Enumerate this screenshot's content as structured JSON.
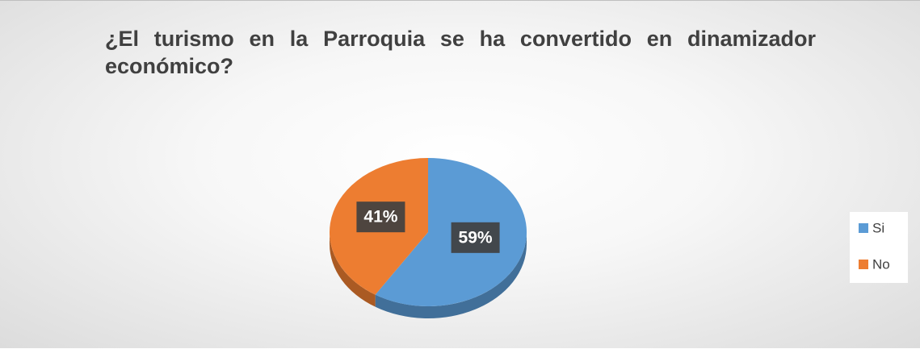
{
  "chart_data": {
    "type": "pie",
    "title": "¿El turismo en la Parroquia se ha convertido en dinamizador económico?",
    "categories": [
      "Si",
      "No"
    ],
    "values": [
      59,
      41
    ],
    "value_labels": [
      "59%",
      "41%"
    ],
    "colors": [
      "#5b9bd5",
      "#ed7d31"
    ],
    "legend": "right"
  }
}
